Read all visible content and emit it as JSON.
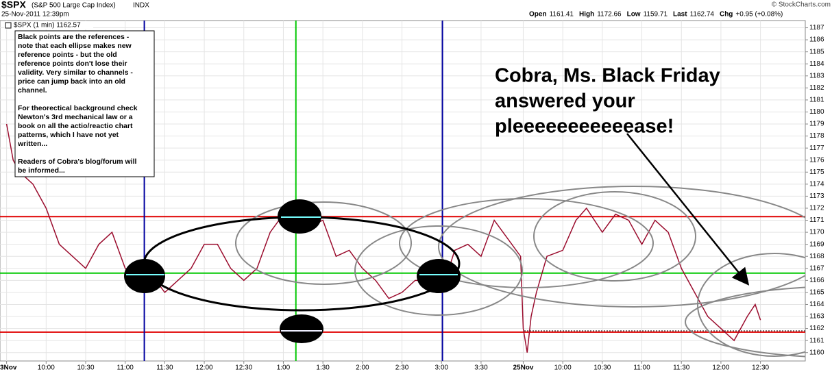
{
  "chart_data": {
    "type": "line",
    "symbol": "$SPX",
    "title": "(S&P 500 Large Cap Index)",
    "exchange": "INDX",
    "timestamp": "25-Nov-2011 12:39pm",
    "credit": "© StockCharts.com",
    "quote": {
      "open_label": "Open",
      "open": 1161.41,
      "high_label": "High",
      "high": 1172.66,
      "low_label": "Low",
      "low": 1159.71,
      "last_label": "Last",
      "last": 1162.74,
      "chg_label": "Chg",
      "chg": "+0.95 (+0.08%)"
    },
    "legend_label": "$SPX (1 min) 1162.57",
    "note": [
      [
        "Black points are the references -",
        "note that each ellipse makes new",
        "reference points - but the old",
        "reference points don't lose their",
        "validity. Very similar to channels -",
        "price can jump back into an old",
        "channel."
      ],
      [
        "For theorectical background check",
        "Newton's 3rd mechanical law or a",
        "book on all the actio/reactio chart",
        "patterns, which I have not yet",
        "written..."
      ],
      [
        "Readers of Cobra's blog/forum will",
        "be informed..."
      ]
    ],
    "annotation": [
      "Cobra, Ms. Black Friday",
      "answered your",
      "pleeeeeeeeeeease!"
    ],
    "series": [
      {
        "name": "$SPX",
        "color": "#9b0d2e",
        "x": [
          0,
          5,
          10,
          20,
          30,
          40,
          50,
          60,
          70,
          80,
          90,
          100,
          110,
          120,
          130,
          140,
          150,
          160,
          170,
          180,
          190,
          200,
          210,
          220,
          230,
          240,
          250,
          260,
          270,
          280,
          290,
          300,
          310,
          320,
          330,
          340,
          350,
          360,
          370,
          380,
          390,
          392,
          395,
          398,
          402,
          410,
          422,
          432,
          440,
          452,
          462,
          472,
          482,
          492,
          502,
          512,
          522,
          532,
          542,
          552,
          562,
          568,
          572
        ],
        "values": [
          1179,
          1176,
          1175,
          1174,
          1172,
          1169,
          1168,
          1167,
          1169,
          1170,
          1167,
          1166,
          1166.5,
          1165,
          1166,
          1167,
          1169,
          1169,
          1167,
          1166,
          1167,
          1170,
          1171.5,
          1170,
          1170.5,
          1171,
          1168,
          1168.5,
          1167,
          1166,
          1164.5,
          1165,
          1166,
          1166,
          1165,
          1168.5,
          1169,
          1168,
          1171,
          1169.5,
          1168,
          1162,
          1160,
          1163,
          1165,
          1168,
          1168.5,
          1171,
          1172,
          1170,
          1171.5,
          1171,
          1169,
          1171,
          1170,
          1167,
          1165,
          1163,
          1162,
          1161,
          1163,
          1164,
          1162.7
        ]
      }
    ],
    "reference_lines": [
      {
        "axis": "y",
        "value": 1171.3,
        "color": "#e00000"
      },
      {
        "axis": "y",
        "value": 1166.6,
        "color": "#00c800"
      },
      {
        "axis": "y",
        "value": 1161.7,
        "color": "#e00000"
      },
      {
        "axis": "x",
        "value": 104.5,
        "color": "#0000a0"
      },
      {
        "axis": "x",
        "value": 219.5,
        "color": "#00c800"
      },
      {
        "axis": "x",
        "value": 330.7,
        "color": "#0000a0"
      }
    ],
    "xlim": [
      -5,
      606
    ],
    "xticks": [
      {
        "value": 0,
        "label": "3Nov"
      },
      {
        "value": 30,
        "label": "10:00"
      },
      {
        "value": 60,
        "label": "10:30"
      },
      {
        "value": 90,
        "label": "11:00"
      },
      {
        "value": 120,
        "label": "11:30"
      },
      {
        "value": 150,
        "label": "12:00"
      },
      {
        "value": 180,
        "label": "12:30"
      },
      {
        "value": 210,
        "label": "1:00"
      },
      {
        "value": 240,
        "label": "1:30"
      },
      {
        "value": 270,
        "label": "2:00"
      },
      {
        "value": 300,
        "label": "2:30"
      },
      {
        "value": 330,
        "label": "3:00"
      },
      {
        "value": 360,
        "label": "3:30"
      },
      {
        "value": 392,
        "label": "25Nov"
      },
      {
        "value": 422,
        "label": "10:00"
      },
      {
        "value": 452,
        "label": "10:30"
      },
      {
        "value": 482,
        "label": "11:00"
      },
      {
        "value": 512,
        "label": "11:30"
      },
      {
        "value": 542,
        "label": "12:00"
      },
      {
        "value": 572,
        "label": "12:30"
      }
    ],
    "ylim": [
      1159.3,
      1187.6
    ],
    "yticks": [
      1160,
      1161,
      1162,
      1163,
      1164,
      1165,
      1166,
      1167,
      1168,
      1169,
      1170,
      1171,
      1172,
      1173,
      1174,
      1175,
      1176,
      1177,
      1178,
      1179,
      1180,
      1181,
      1182,
      1183,
      1184,
      1185,
      1186,
      1187
    ],
    "grid": true
  }
}
